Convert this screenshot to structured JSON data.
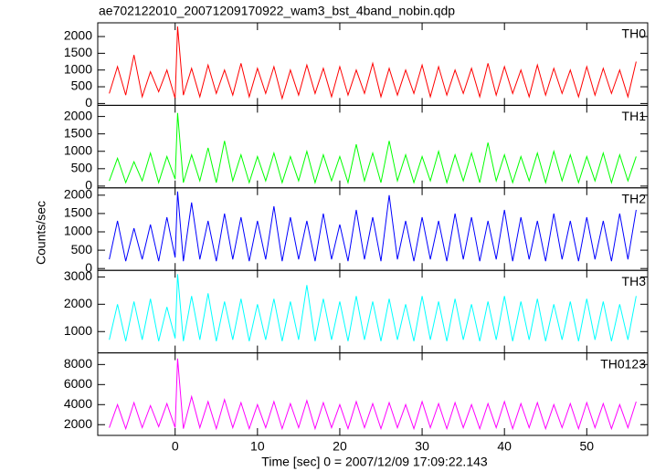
{
  "chart_data": {
    "type": "line",
    "title": "ae702122010_20071209170922_wam3_bst_4band_nobin.qdp",
    "xlabel": "Time [sec] 0 = 2007/12/09 17:09:22.143",
    "ylabel": "Counts/sec",
    "xlim": [
      -9.4,
      57.4
    ],
    "xticks": [
      0,
      10,
      20,
      30,
      40,
      50
    ],
    "x": [
      -8,
      -7,
      -6,
      -5,
      -4,
      -3,
      -2,
      -1,
      0,
      0.3,
      1,
      2,
      3,
      4,
      5,
      6,
      7,
      8,
      9,
      10,
      11,
      12,
      13,
      14,
      15,
      16,
      17,
      18,
      19,
      20,
      21,
      22,
      23,
      24,
      25,
      26,
      27,
      28,
      29,
      30,
      31,
      32,
      33,
      34,
      35,
      36,
      37,
      38,
      39,
      40,
      41,
      42,
      43,
      44,
      45,
      46,
      47,
      48,
      49,
      50,
      51,
      52,
      53,
      54,
      55,
      56
    ],
    "series": [
      {
        "name": "TH0",
        "color": "#ff0000",
        "ylim": [
          -55,
          2410
        ],
        "yticks": [
          0,
          500,
          1000,
          1500,
          2000
        ],
        "values": [
          300,
          1100,
          250,
          1450,
          200,
          950,
          350,
          1000,
          150,
          2300,
          250,
          1050,
          200,
          1150,
          300,
          1000,
          250,
          1200,
          200,
          1050,
          300,
          1100,
          150,
          1000,
          250,
          1150,
          300,
          1050,
          200,
          1100,
          250,
          1000,
          300,
          1200,
          200,
          1050,
          250,
          1000,
          300,
          1150,
          200,
          1100,
          250,
          1000,
          300,
          1050,
          200,
          1200,
          250,
          1100,
          300,
          1000,
          200,
          1150,
          250,
          1050,
          300,
          1000,
          200,
          1100,
          250,
          1050,
          300,
          1000,
          200,
          1250
        ]
      },
      {
        "name": "TH1",
        "color": "#00ff00",
        "ylim": [
          -50,
          2320
        ],
        "yticks": [
          0,
          500,
          1000,
          1500,
          2000
        ],
        "values": [
          150,
          800,
          100,
          700,
          150,
          950,
          100,
          850,
          200,
          2100,
          100,
          900,
          150,
          1100,
          100,
          1300,
          150,
          900,
          100,
          850,
          150,
          950,
          100,
          850,
          150,
          1000,
          100,
          900,
          150,
          850,
          100,
          1200,
          150,
          950,
          100,
          1300,
          150,
          900,
          100,
          850,
          150,
          1000,
          100,
          900,
          150,
          950,
          100,
          1250,
          150,
          900,
          100,
          850,
          150,
          950,
          100,
          1000,
          150,
          900,
          100,
          850,
          150,
          950,
          100,
          900,
          150,
          850
        ]
      },
      {
        "name": "TH2",
        "color": "#0000ff",
        "ylim": [
          -50,
          2200
        ],
        "yticks": [
          0,
          500,
          1000,
          1500,
          2000
        ],
        "values": [
          250,
          1300,
          200,
          1100,
          250,
          1200,
          200,
          1400,
          300,
          2100,
          200,
          1800,
          250,
          1300,
          200,
          1500,
          250,
          1400,
          200,
          1300,
          250,
          1700,
          200,
          1400,
          250,
          1300,
          200,
          1500,
          250,
          1200,
          200,
          1600,
          250,
          1400,
          200,
          2000,
          250,
          1300,
          200,
          1400,
          250,
          1300,
          200,
          1500,
          250,
          1400,
          200,
          1300,
          250,
          1600,
          200,
          1400,
          250,
          1300,
          200,
          1500,
          250,
          1300,
          200,
          1400,
          250,
          1300,
          200,
          1500,
          250,
          1600
        ]
      },
      {
        "name": "TH3",
        "color": "#00ffff",
        "ylim": [
          220,
          3240
        ],
        "yticks": [
          1000,
          2000,
          3000
        ],
        "values": [
          700,
          2000,
          650,
          2100,
          700,
          2200,
          650,
          1900,
          750,
          3100,
          650,
          2300,
          700,
          2400,
          650,
          2100,
          700,
          2200,
          650,
          2000,
          700,
          2200,
          650,
          2100,
          700,
          2700,
          650,
          2200,
          700,
          2100,
          650,
          2300,
          700,
          2100,
          650,
          2200,
          700,
          2000,
          650,
          2300,
          700,
          2100,
          650,
          2200,
          700,
          2000,
          650,
          2100,
          700,
          2300,
          650,
          2100,
          700,
          2200,
          650,
          2000,
          700,
          2100,
          650,
          2200,
          700,
          2100,
          650,
          2000,
          700,
          2300
        ]
      },
      {
        "name": "TH0123",
        "color": "#ff00ff",
        "ylim": [
          930,
          9160
        ],
        "yticks": [
          2000,
          4000,
          6000,
          8000
        ],
        "values": [
          1700,
          4000,
          1600,
          4200,
          1700,
          3900,
          1800,
          4100,
          1700,
          8600,
          1600,
          4800,
          1700,
          4300,
          1600,
          4500,
          1700,
          4200,
          1600,
          4000,
          1700,
          4300,
          1600,
          4100,
          1700,
          4400,
          1600,
          4200,
          1700,
          4000,
          1600,
          4300,
          1700,
          4100,
          1600,
          4200,
          1700,
          4000,
          1600,
          4300,
          1700,
          4100,
          1600,
          4200,
          1700,
          4000,
          1600,
          4100,
          1700,
          4300,
          1600,
          4100,
          1700,
          4200,
          1600,
          4000,
          1700,
          4100,
          1600,
          4200,
          1700,
          4100,
          1600,
          4000,
          1700,
          4300
        ]
      }
    ]
  }
}
